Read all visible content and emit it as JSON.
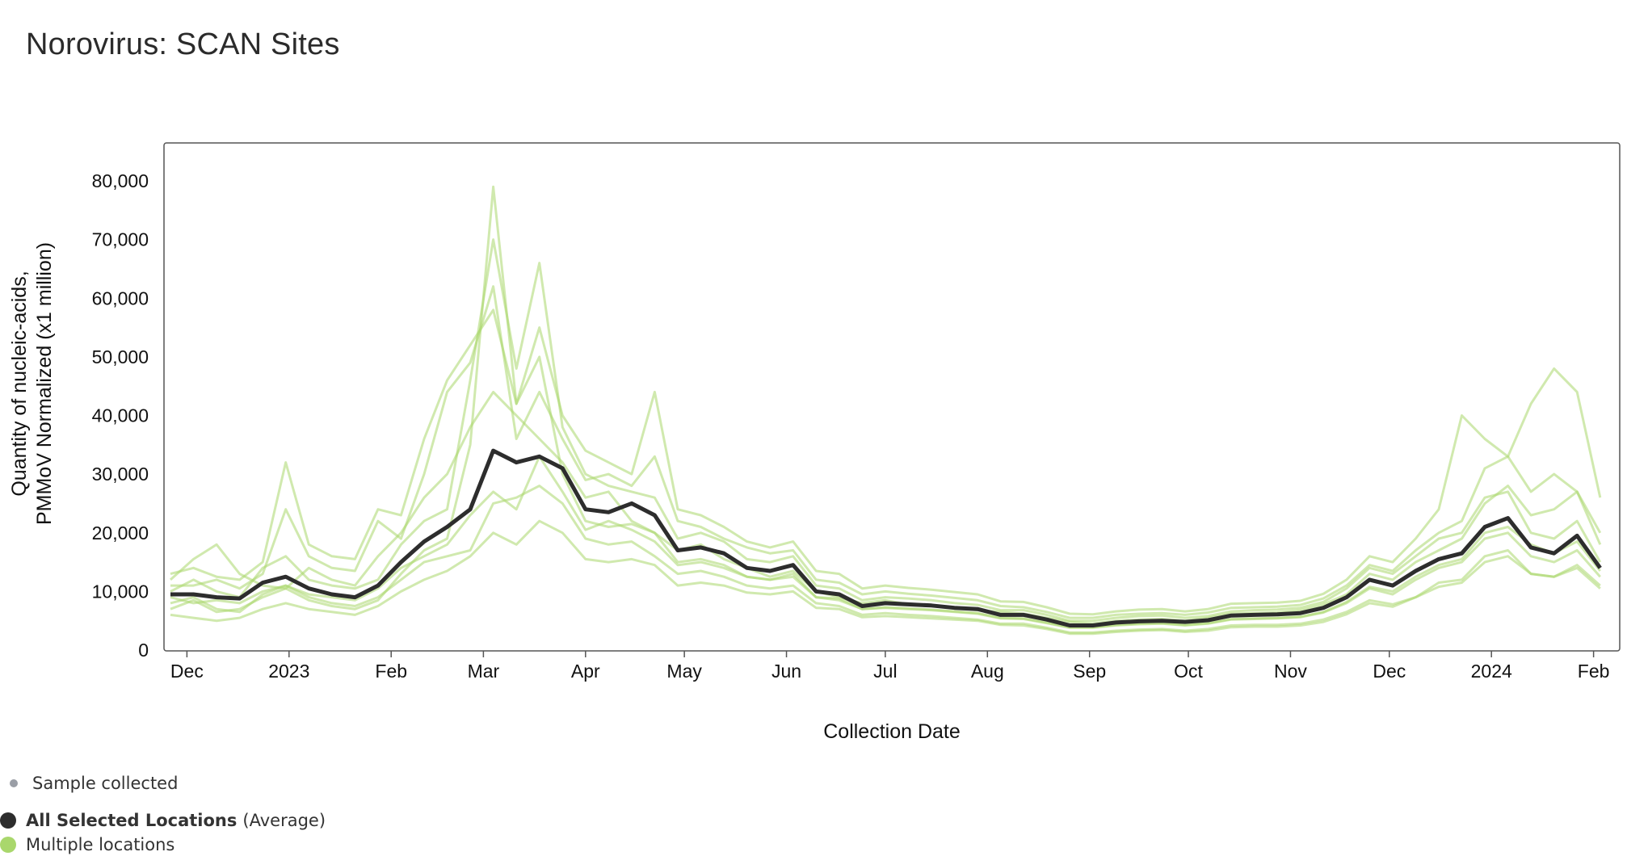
{
  "chart_data": {
    "type": "line",
    "title": "Norovirus: SCAN Sites",
    "xlabel": "Collection Date",
    "ylabel_lines": [
      "Quantity of nucleic-acids,",
      "PMMoV Normalized (x1 million)"
    ],
    "xlim": [
      "2022-11-26",
      "2024-02-06"
    ],
    "ylim": [
      0,
      83000
    ],
    "yticks": [
      0,
      10000,
      20000,
      30000,
      40000,
      50000,
      60000,
      70000,
      80000
    ],
    "ytick_labels": [
      "0",
      "10,000",
      "20,000",
      "30,000",
      "40,000",
      "50,000",
      "60,000",
      "70,000",
      "80,000"
    ],
    "xticks": [
      {
        "date": "2022-12-01",
        "label": "Dec"
      },
      {
        "date": "2023-01-01",
        "label": "2023"
      },
      {
        "date": "2023-02-01",
        "label": "Feb"
      },
      {
        "date": "2023-03-01",
        "label": "Mar"
      },
      {
        "date": "2023-04-01",
        "label": "Apr"
      },
      {
        "date": "2023-05-01",
        "label": "May"
      },
      {
        "date": "2023-06-01",
        "label": "Jun"
      },
      {
        "date": "2023-07-01",
        "label": "Jul"
      },
      {
        "date": "2023-08-01",
        "label": "Aug"
      },
      {
        "date": "2023-09-01",
        "label": "Sep"
      },
      {
        "date": "2023-10-01",
        "label": "Oct"
      },
      {
        "date": "2023-11-01",
        "label": "Nov"
      },
      {
        "date": "2023-12-01",
        "label": "Dec"
      },
      {
        "date": "2024-01-01",
        "label": "2024"
      },
      {
        "date": "2024-02-01",
        "label": "Feb"
      }
    ],
    "grid": false,
    "legend_placement": "bottom-left",
    "series": [
      {
        "name": "All Selected Locations",
        "name_suffix": "(Average)",
        "color": "#2d2d2d",
        "role": "average",
        "x": [
          "2022-11-26",
          "2022-12-03",
          "2022-12-10",
          "2022-12-17",
          "2022-12-24",
          "2022-12-31",
          "2023-01-07",
          "2023-01-14",
          "2023-01-21",
          "2023-01-28",
          "2023-02-04",
          "2023-02-11",
          "2023-02-18",
          "2023-02-25",
          "2023-03-04",
          "2023-03-11",
          "2023-03-18",
          "2023-03-25",
          "2023-04-01",
          "2023-04-08",
          "2023-04-15",
          "2023-04-22",
          "2023-04-29",
          "2023-05-06",
          "2023-05-13",
          "2023-05-20",
          "2023-05-27",
          "2023-06-03",
          "2023-06-10",
          "2023-06-17",
          "2023-06-24",
          "2023-07-01",
          "2023-07-08",
          "2023-07-15",
          "2023-07-22",
          "2023-07-29",
          "2023-08-05",
          "2023-08-12",
          "2023-08-19",
          "2023-08-26",
          "2023-09-02",
          "2023-09-09",
          "2023-09-16",
          "2023-09-23",
          "2023-09-30",
          "2023-10-07",
          "2023-10-14",
          "2023-10-21",
          "2023-10-28",
          "2023-11-04",
          "2023-11-11",
          "2023-11-18",
          "2023-11-25",
          "2023-12-02",
          "2023-12-09",
          "2023-12-16",
          "2023-12-23",
          "2023-12-30",
          "2024-01-06",
          "2024-01-13",
          "2024-01-20",
          "2024-01-27",
          "2024-02-03"
        ],
        "y": [
          9500,
          9500,
          9000,
          8800,
          11500,
          12500,
          10500,
          9500,
          9000,
          11000,
          15000,
          18500,
          21000,
          24000,
          34000,
          32000,
          33000,
          31000,
          24000,
          23500,
          25000,
          23000,
          17000,
          17500,
          16500,
          14000,
          13500,
          14500,
          10000,
          9500,
          7500,
          8000,
          7800,
          7600,
          7200,
          7000,
          6000,
          6000,
          5200,
          4200,
          4200,
          4700,
          4900,
          5000,
          4800,
          5100,
          5900,
          6000,
          6100,
          6300,
          7200,
          9000,
          12000,
          11000,
          13500,
          15500,
          16500,
          21000,
          22500,
          17500,
          16500,
          19500,
          14000
        ]
      },
      {
        "name": "Multiple locations",
        "color": "#a9d76c",
        "role": "locations",
        "x": [
          "2022-11-26",
          "2022-12-03",
          "2022-12-10",
          "2022-12-17",
          "2022-12-24",
          "2022-12-31",
          "2023-01-07",
          "2023-01-14",
          "2023-01-21",
          "2023-01-28",
          "2023-02-04",
          "2023-02-11",
          "2023-02-18",
          "2023-02-25",
          "2023-03-04",
          "2023-03-11",
          "2023-03-18",
          "2023-03-25",
          "2023-04-01",
          "2023-04-08",
          "2023-04-15",
          "2023-04-22",
          "2023-04-29",
          "2023-05-06",
          "2023-05-13",
          "2023-05-20",
          "2023-05-27",
          "2023-06-03",
          "2023-06-10",
          "2023-06-17",
          "2023-06-24",
          "2023-07-01",
          "2023-07-08",
          "2023-07-15",
          "2023-07-22",
          "2023-07-29",
          "2023-08-05",
          "2023-08-12",
          "2023-08-19",
          "2023-08-26",
          "2023-09-02",
          "2023-09-09",
          "2023-09-16",
          "2023-09-23",
          "2023-09-30",
          "2023-10-07",
          "2023-10-14",
          "2023-10-21",
          "2023-10-28",
          "2023-11-04",
          "2023-11-11",
          "2023-11-18",
          "2023-11-25",
          "2023-12-02",
          "2023-12-09",
          "2023-12-16",
          "2023-12-23",
          "2023-12-30",
          "2024-01-06",
          "2024-01-13",
          "2024-01-20",
          "2024-01-27",
          "2024-02-03"
        ],
        "lines": [
          [
            12000,
            15500,
            18000,
            13000,
            11000,
            10500,
            14000,
            12000,
            11000,
            16000,
            20000,
            26000,
            30000,
            38000,
            44000,
            40000,
            36000,
            32000,
            26000,
            27000,
            22000,
            20000,
            17000,
            18000,
            15500,
            14000,
            12500,
            13500,
            10000,
            9000,
            8000,
            8500,
            7800,
            7500,
            7200,
            6800,
            6500,
            6200,
            5500,
            4800,
            4500,
            5000,
            5200,
            5300,
            5000,
            5500,
            6200,
            6300,
            6400,
            6800,
            7800,
            9500,
            13000,
            12000,
            15000,
            17000,
            19000,
            25000,
            28000,
            23000,
            24000,
            27000,
            18000
          ],
          [
            8000,
            9000,
            7000,
            6500,
            9500,
            11000,
            9000,
            8000,
            7500,
            9000,
            12000,
            15000,
            16000,
            17000,
            25000,
            26000,
            28000,
            25000,
            19000,
            18000,
            18500,
            16000,
            13000,
            13500,
            12500,
            11000,
            10500,
            11000,
            8000,
            7500,
            6000,
            6300,
            6000,
            5800,
            5500,
            5200,
            4500,
            4500,
            3800,
            3000,
            3000,
            3300,
            3500,
            3600,
            3300,
            3600,
            4200,
            4300,
            4300,
            4500,
            5200,
            6500,
            8500,
            7800,
            9000,
            11500,
            12000,
            16000,
            17000,
            13000,
            12500,
            14500,
            11000
          ],
          [
            10000,
            12000,
            10000,
            9000,
            14000,
            16000,
            12000,
            11000,
            10500,
            12000,
            18000,
            22000,
            24000,
            46000,
            70000,
            48000,
            66000,
            38000,
            30000,
            28000,
            27000,
            26000,
            19000,
            20000,
            18500,
            15500,
            15000,
            16000,
            11000,
            10500,
            8500,
            9000,
            8800,
            8500,
            8000,
            7700,
            6800,
            6800,
            6000,
            5000,
            5000,
            5500,
            5800,
            5900,
            5500,
            5800,
            6600,
            6800,
            6900,
            7200,
            8200,
            10500,
            14000,
            13000,
            16000,
            19000,
            20000,
            26000,
            27000,
            20000,
            19000,
            22000,
            15000
          ],
          [
            7000,
            8500,
            6500,
            7000,
            9000,
            10500,
            8500,
            7500,
            7000,
            8500,
            13000,
            17000,
            19000,
            35000,
            79000,
            42000,
            50000,
            30000,
            22000,
            21000,
            21500,
            20000,
            15000,
            15500,
            14500,
            12500,
            12000,
            13000,
            9000,
            8500,
            7000,
            7200,
            7000,
            6800,
            6500,
            6200,
            5400,
            5300,
            4600,
            3800,
            3800,
            4200,
            4400,
            4500,
            4200,
            4500,
            5200,
            5300,
            5400,
            5600,
            6400,
            8000,
            10500,
            9500,
            12000,
            14000,
            15000,
            19000,
            20000,
            16000,
            15000,
            17000,
            12500
          ],
          [
            11000,
            11000,
            12000,
            10500,
            13000,
            24000,
            16000,
            14000,
            13500,
            22000,
            19000,
            30000,
            44000,
            49000,
            62000,
            36000,
            44000,
            36000,
            29000,
            30000,
            28000,
            33000,
            22000,
            21000,
            19000,
            17500,
            16500,
            17000,
            12000,
            11500,
            9500,
            10000,
            9600,
            9300,
            8900,
            8500,
            7500,
            7300,
            6500,
            5500,
            5500,
            6000,
            6200,
            6300,
            6000,
            6400,
            7200,
            7300,
            7400,
            7700,
            8800,
            11000,
            14500,
            13500,
            17000,
            20000,
            22000,
            31000,
            33000,
            27000,
            30000,
            27000,
            20000
          ],
          [
            9000,
            8000,
            8500,
            8000,
            10000,
            11000,
            9500,
            9000,
            8500,
            10500,
            14000,
            16000,
            18000,
            23000,
            27000,
            24000,
            33000,
            27000,
            20500,
            22000,
            20500,
            18500,
            14500,
            15000,
            14000,
            12500,
            12000,
            12500,
            9000,
            8800,
            7000,
            7300,
            7100,
            6900,
            6600,
            6300,
            5500,
            5400,
            4700,
            3900,
            3900,
            4300,
            4500,
            4600,
            4300,
            4600,
            5300,
            5400,
            5500,
            5700,
            6500,
            8200,
            10800,
            10000,
            12500,
            14500,
            15500,
            20000,
            21000,
            18000,
            16500,
            18500,
            13500
          ],
          [
            13000,
            14000,
            12500,
            12000,
            15000,
            32000,
            18000,
            16000,
            15500,
            24000,
            23000,
            36000,
            46000,
            52000,
            58000,
            42000,
            55000,
            40000,
            34000,
            32000,
            30000,
            44000,
            24000,
            23000,
            21000,
            18500,
            17500,
            18500,
            13500,
            13000,
            10500,
            11000,
            10600,
            10300,
            9900,
            9500,
            8300,
            8200,
            7300,
            6200,
            6100,
            6600,
            6900,
            7000,
            6600,
            7000,
            7900,
            8000,
            8100,
            8400,
            9600,
            12000,
            16000,
            15000,
            19000,
            24000,
            40000,
            36000,
            33000,
            42000,
            48000,
            44000,
            26000
          ],
          [
            6000,
            5500,
            5000,
            5500,
            7000,
            8000,
            7000,
            6500,
            6000,
            7500,
            10000,
            12000,
            13500,
            16000,
            20000,
            18000,
            22000,
            20000,
            15500,
            15000,
            15500,
            14500,
            11000,
            11500,
            11000,
            9800,
            9500,
            10000,
            7200,
            7000,
            5600,
            5800,
            5600,
            5400,
            5200,
            5000,
            4300,
            4200,
            3600,
            2800,
            2800,
            3100,
            3300,
            3400,
            3100,
            3300,
            3900,
            4000,
            4000,
            4200,
            4800,
            6100,
            8000,
            7400,
            9000,
            10800,
            11500,
            15000,
            16000,
            13000,
            12500,
            14000,
            10500
          ]
        ]
      }
    ],
    "markers_legend": "Sample collected"
  },
  "legend": {
    "sample_label": "Sample collected",
    "average_label": "All Selected Locations",
    "average_suffix": "(Average)",
    "locations_label": "Multiple locations",
    "sample_color": "#9a9ea6",
    "average_color": "#2d2d2d",
    "locations_color": "#a9d76c"
  }
}
